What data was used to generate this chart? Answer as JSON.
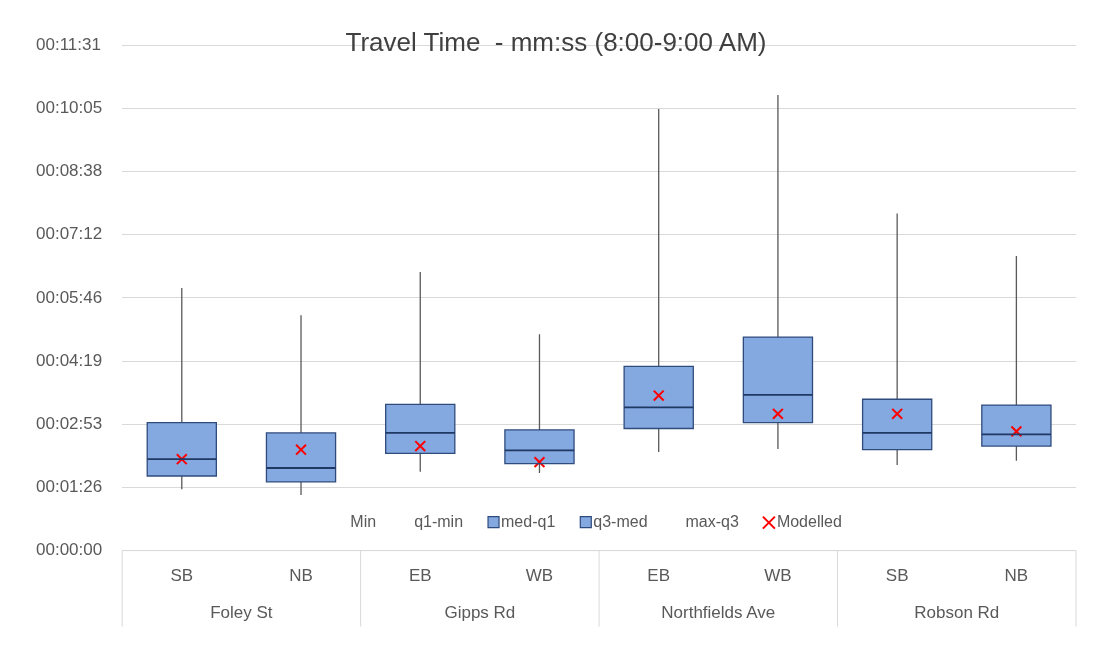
{
  "chart_data": {
    "type": "box",
    "title": "Travel Time  - mm:ss (8:00-9:00 AM)",
    "categories": [
      "SB",
      "NB",
      "EB",
      "WB",
      "EB",
      "WB",
      "SB",
      "NB"
    ],
    "annotations": [
      "Foley St",
      "Gipps Rd",
      "Northfields Ave",
      "Robson Rd"
    ],
    "ylim": [
      0,
      691.2
    ],
    "yticks": [
      {
        "value": 0,
        "label": "00:00:00"
      },
      {
        "value": 86.4,
        "label": "00:01:26"
      },
      {
        "value": 172.8,
        "label": "00:02:53"
      },
      {
        "value": 259.2,
        "label": "00:04:19"
      },
      {
        "value": 345.6,
        "label": "00:05:46"
      },
      {
        "value": 432,
        "label": "00:07:12"
      },
      {
        "value": 518.4,
        "label": "00:08:38"
      },
      {
        "value": 604.8,
        "label": "00:10:05"
      },
      {
        "value": 691.2,
        "label": "00:11:31"
      }
    ],
    "grid": "y",
    "legend": "bottom",
    "series": [
      {
        "name": "Min",
        "values": [
          null,
          null,
          null,
          null,
          null,
          null,
          null,
          null
        ]
      },
      {
        "name": "q1-min",
        "values": [
          null,
          null,
          null,
          null,
          null,
          null,
          null,
          null
        ]
      },
      {
        "name": "med-q1",
        "color": "#84a8e0",
        "boxes": [
          {
            "low": 84,
            "q1": 102,
            "median": 125,
            "q3": 175,
            "high": 359
          },
          {
            "low": 76,
            "q1": 94,
            "median": 113,
            "q3": 161,
            "high": 322
          },
          {
            "low": 108,
            "q1": 133,
            "median": 161,
            "q3": 200,
            "high": 381
          },
          {
            "low": 106,
            "q1": 119,
            "median": 137,
            "q3": 165,
            "high": 296
          },
          {
            "low": 135,
            "q1": 167,
            "median": 196,
            "q3": 252,
            "high": 604
          },
          {
            "low": 139,
            "q1": 175,
            "median": 213,
            "q3": 292,
            "high": 623
          },
          {
            "low": 117,
            "q1": 138,
            "median": 161,
            "q3": 207,
            "high": 461
          },
          {
            "low": 123,
            "q1": 143,
            "median": 159,
            "q3": 199,
            "high": 403
          }
        ]
      },
      {
        "name": "q3-med",
        "color": "#84a8e0",
        "values": [
          null,
          null,
          null,
          null,
          null,
          null,
          null,
          null
        ]
      },
      {
        "name": "max-q3",
        "values": [
          null,
          null,
          null,
          null,
          null,
          null,
          null,
          null
        ]
      },
      {
        "type": "scatter",
        "name": "Modelled",
        "color": "#ff0000",
        "marker": "cross",
        "values": [
          125,
          138,
          143,
          121,
          212,
          187,
          187,
          163
        ]
      }
    ]
  }
}
